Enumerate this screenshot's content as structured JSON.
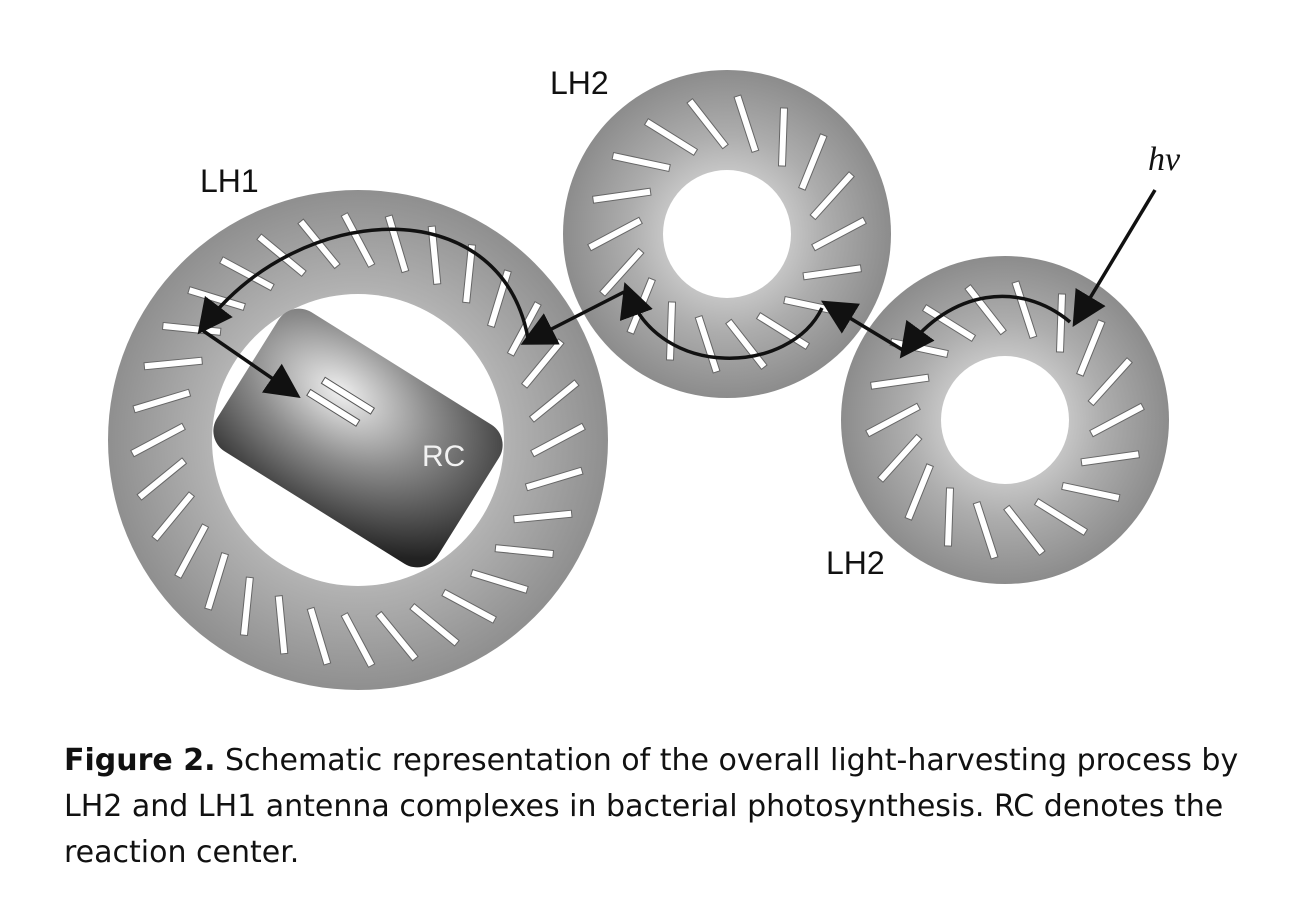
{
  "labels": {
    "lh1": "LH1",
    "lh2_top": "LH2",
    "lh2_right": "LH2",
    "rc": "RC",
    "hv": "hν"
  },
  "caption": {
    "figure_label": "Figure 2.",
    "text": " Schematic representation of the overall light-harvesting process by LH2 and LH1 antenna complexes in bacterial photosynthesis. RC denotes the reaction center."
  },
  "colors": {
    "ring": "#9a9a9a",
    "ring_light": "#c4c4c4",
    "pigment": "#ffffff",
    "rc_dark": "#2a2a2a",
    "rc_light": "#e6e6e6",
    "arrow": "#111111"
  }
}
